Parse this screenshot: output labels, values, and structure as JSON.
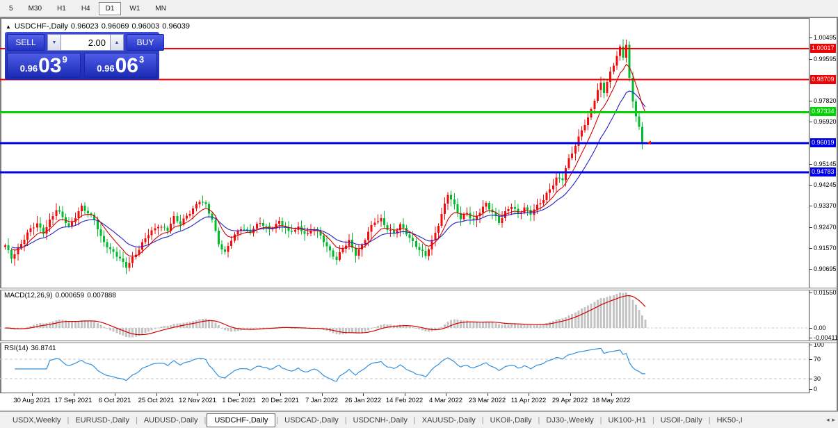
{
  "timeframe_bar": {
    "items": [
      {
        "label": "5",
        "active": false
      },
      {
        "label": "M30",
        "active": false
      },
      {
        "label": "H1",
        "active": false
      },
      {
        "label": "H4",
        "active": false
      },
      {
        "label": "D1",
        "active": true
      },
      {
        "label": "W1",
        "active": false
      },
      {
        "label": "MN",
        "active": false
      }
    ]
  },
  "title": {
    "collapse_arrow": "▲",
    "symbol": "USDCHF-,Daily",
    "open": "0.96023",
    "high": "0.96069",
    "low": "0.96003",
    "close": "0.96039"
  },
  "trade_panel": {
    "sell_label": "SELL",
    "buy_label": "BUY",
    "volume_value": "2.00",
    "spinner_down_icon": "▼",
    "spinner_up_icon": "▲",
    "sell_price_prefix": "0.96",
    "sell_price_big": "03",
    "sell_price_pip": "9",
    "buy_price_prefix": "0.96",
    "buy_price_big": "06",
    "buy_price_pip": "3"
  },
  "macd_panel": {
    "label": "MACD(12,26,9)",
    "main_value": "0.000659",
    "signal_value": "0.007888",
    "axis_ticks": [
      {
        "value": 0.0155,
        "label": "0.01550"
      },
      {
        "value": 0.0,
        "label": "0.00"
      },
      {
        "value": -0.00411,
        "label": "-0.00411"
      }
    ]
  },
  "rsi_panel": {
    "label": "RSI(14)",
    "value": "36.8741",
    "axis_ticks": [
      {
        "value": 100,
        "label": "100"
      },
      {
        "value": 70,
        "label": "70"
      },
      {
        "value": 30,
        "label": "30"
      },
      {
        "value": 0,
        "label": "0"
      }
    ]
  },
  "date_axis": {
    "labels": [
      "30 Aug 2021",
      "17 Sep 2021",
      "6 Oct 2021",
      "25 Oct 2021",
      "12 Nov 2021",
      "1 Dec 2021",
      "20 Dec 2021",
      "7 Jan 2022",
      "26 Jan 2022",
      "14 Feb 2022",
      "4 Mar 2022",
      "23 Mar 2022",
      "11 Apr 2022",
      "29 Apr 2022",
      "18 May 2022"
    ]
  },
  "tab_bar": {
    "tabs": [
      {
        "label": "USDX,Weekly",
        "active": false
      },
      {
        "label": "EURUSD-,Daily",
        "active": false
      },
      {
        "label": "AUDUSD-,Daily",
        "active": false
      },
      {
        "label": "USDCHF-,Daily",
        "active": true
      },
      {
        "label": "USDCAD-,Daily",
        "active": false
      },
      {
        "label": "USDCNH-,Daily",
        "active": false
      },
      {
        "label": "XAUUSD-,Daily",
        "active": false
      },
      {
        "label": "UKOil-,Daily",
        "active": false
      },
      {
        "label": "DJ30-,Weekly",
        "active": false
      },
      {
        "label": "UK100-,H1",
        "active": false
      },
      {
        "label": "USOil-,Daily",
        "active": false
      },
      {
        "label": "HK50-,I",
        "active": false
      }
    ],
    "scroll_left_icon": "◂",
    "scroll_right_icon": "▸"
  },
  "chart_data": {
    "type": "candlestick",
    "symbol": "USDCHF",
    "period": "Daily",
    "visible_range": {
      "start": "30 Aug 2021",
      "end": "24 May 2022"
    },
    "up_color": "#f20c0c",
    "down_color": "#00bb2e",
    "price_axis_ticks": [
      {
        "price": 1.00495,
        "label": "1.00495"
      },
      {
        "price": 0.99595,
        "label": "0.99595"
      },
      {
        "price": 0.9782,
        "label": "0.97820"
      },
      {
        "price": 0.9692,
        "label": "0.96920"
      },
      {
        "price": 0.95145,
        "label": "0.95145"
      },
      {
        "price": 0.94245,
        "label": "0.94245"
      },
      {
        "price": 0.9337,
        "label": "0.93370"
      },
      {
        "price": 0.9247,
        "label": "0.92470"
      },
      {
        "price": 0.9157,
        "label": "0.91570"
      },
      {
        "price": 0.90695,
        "label": "0.90695"
      }
    ],
    "levels": [
      {
        "price": 1.00017,
        "label": "1.00017",
        "color": "#f00000",
        "line_width": 2
      },
      {
        "price": 0.98709,
        "label": "0.98709",
        "color": "#f00000",
        "line_width": 2
      },
      {
        "price": 0.97334,
        "label": "0.97334",
        "color": "#00d300",
        "line_width": 3
      },
      {
        "price": 0.96019,
        "label": "0.96019",
        "color": "#0000e8",
        "line_width": 3
      },
      {
        "price": 0.94783,
        "label": "0.94783",
        "color": "#0000e8",
        "line_width": 3
      }
    ],
    "last_candle": {
      "open": 0.96023,
      "high": 0.96069,
      "low": 0.96003,
      "close": 0.96039
    },
    "bars": 202,
    "close_path_anchors": [
      [
        0,
        0.9165
      ],
      [
        2,
        0.9118
      ],
      [
        5,
        0.918
      ],
      [
        8,
        0.9235
      ],
      [
        10,
        0.9258
      ],
      [
        12,
        0.9228
      ],
      [
        14,
        0.9275
      ],
      [
        16,
        0.9318
      ],
      [
        18,
        0.9286
      ],
      [
        20,
        0.9248
      ],
      [
        22,
        0.9295
      ],
      [
        24,
        0.9332
      ],
      [
        26,
        0.93
      ],
      [
        28,
        0.9278
      ],
      [
        30,
        0.9208
      ],
      [
        33,
        0.9148
      ],
      [
        36,
        0.9108
      ],
      [
        38,
        0.9082
      ],
      [
        40,
        0.9118
      ],
      [
        42,
        0.9152
      ],
      [
        45,
        0.9215
      ],
      [
        48,
        0.9258
      ],
      [
        51,
        0.9232
      ],
      [
        53,
        0.9282
      ],
      [
        55,
        0.9262
      ],
      [
        57,
        0.93
      ],
      [
        59,
        0.9322
      ],
      [
        61,
        0.9355
      ],
      [
        63,
        0.9338
      ],
      [
        65,
        0.9282
      ],
      [
        67,
        0.918
      ],
      [
        69,
        0.9132
      ],
      [
        71,
        0.919
      ],
      [
        74,
        0.9248
      ],
      [
        77,
        0.9226
      ],
      [
        80,
        0.9262
      ],
      [
        83,
        0.9242
      ],
      [
        86,
        0.9268
      ],
      [
        89,
        0.9222
      ],
      [
        92,
        0.9248
      ],
      [
        95,
        0.9212
      ],
      [
        97,
        0.9238
      ],
      [
        100,
        0.9192
      ],
      [
        102,
        0.9146
      ],
      [
        104,
        0.9108
      ],
      [
        106,
        0.9152
      ],
      [
        108,
        0.9188
      ],
      [
        110,
        0.9136
      ],
      [
        112,
        0.9168
      ],
      [
        114,
        0.9222
      ],
      [
        116,
        0.9268
      ],
      [
        118,
        0.9282
      ],
      [
        120,
        0.9242
      ],
      [
        122,
        0.9216
      ],
      [
        124,
        0.9252
      ],
      [
        126,
        0.9222
      ],
      [
        128,
        0.9186
      ],
      [
        130,
        0.9152
      ],
      [
        132,
        0.912
      ],
      [
        134,
        0.9185
      ],
      [
        136,
        0.9262
      ],
      [
        138,
        0.9345
      ],
      [
        139,
        0.9388
      ],
      [
        141,
        0.9332
      ],
      [
        143,
        0.9282
      ],
      [
        145,
        0.9312
      ],
      [
        147,
        0.9272
      ],
      [
        149,
        0.9308
      ],
      [
        151,
        0.9342
      ],
      [
        153,
        0.9312
      ],
      [
        155,
        0.9272
      ],
      [
        157,
        0.9306
      ],
      [
        159,
        0.9332
      ],
      [
        161,
        0.9302
      ],
      [
        163,
        0.9332
      ],
      [
        165,
        0.9306
      ],
      [
        167,
        0.9332
      ],
      [
        169,
        0.9362
      ],
      [
        171,
        0.9412
      ],
      [
        173,
        0.9455
      ],
      [
        175,
        0.9448
      ],
      [
        177,
        0.953
      ],
      [
        179,
        0.9592
      ],
      [
        181,
        0.9665
      ],
      [
        183,
        0.9705
      ],
      [
        185,
        0.9782
      ],
      [
        187,
        0.9855
      ],
      [
        188,
        0.9822
      ],
      [
        190,
        0.9905
      ],
      [
        192,
        0.9972
      ],
      [
        193,
        1.0002
      ],
      [
        194,
        0.9962
      ],
      [
        195,
        1.0018
      ],
      [
        196,
        0.9872
      ],
      [
        197,
        0.9782
      ],
      [
        198,
        0.9725
      ],
      [
        199,
        0.9672
      ],
      [
        200,
        0.96039
      ]
    ],
    "ma_fast": {
      "period": 8,
      "color": "#d40000"
    },
    "ma_slow": {
      "period": 18,
      "color": "#2020c8"
    },
    "macd": {
      "fast": 12,
      "slow": 26,
      "signal": 9,
      "hist_color": "#c4c4c4",
      "signal_color": "#d40000",
      "axis_max": 0.0155,
      "axis_min": -0.00411
    },
    "rsi": {
      "period": 14,
      "color": "#3090e0",
      "levels": [
        70,
        30
      ],
      "last_value": 36.8741
    }
  }
}
